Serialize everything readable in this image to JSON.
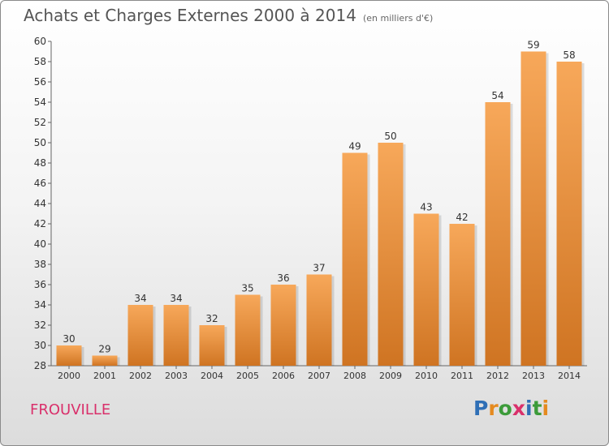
{
  "header": {
    "title": "Achats et Charges Externes 2000 à 2014",
    "unit": "(en milliers d'€)"
  },
  "footer": {
    "commune": "FROUVILLE",
    "logo": {
      "letters": [
        "P",
        "r",
        "o",
        "x",
        "i",
        "t",
        "i"
      ],
      "colors": [
        "#2f6fb6",
        "#e58a1f",
        "#3c9b3a",
        "#d9306b",
        "#2f6fb6",
        "#3c9b3a",
        "#e58a1f"
      ]
    }
  },
  "chart_data": {
    "type": "bar",
    "categories": [
      "2000",
      "2001",
      "2002",
      "2003",
      "2004",
      "2005",
      "2006",
      "2007",
      "2008",
      "2009",
      "2010",
      "2011",
      "2012",
      "2013",
      "2014"
    ],
    "values": [
      30,
      29,
      34,
      34,
      32,
      35,
      36,
      37,
      49,
      50,
      43,
      42,
      54,
      59,
      58
    ],
    "data_labels": [
      "30",
      "29",
      "34",
      "34",
      "32",
      "35",
      "36",
      "37",
      "49",
      "50",
      "43",
      "42",
      "54",
      "59",
      "58"
    ],
    "ylim": [
      28,
      60
    ],
    "yticks": [
      28,
      30,
      32,
      34,
      36,
      38,
      40,
      42,
      44,
      46,
      48,
      50,
      52,
      54,
      56,
      58,
      60
    ],
    "grid": false,
    "bar_color_light": "#f7a85a",
    "bar_color_dark": "#cf7422"
  }
}
